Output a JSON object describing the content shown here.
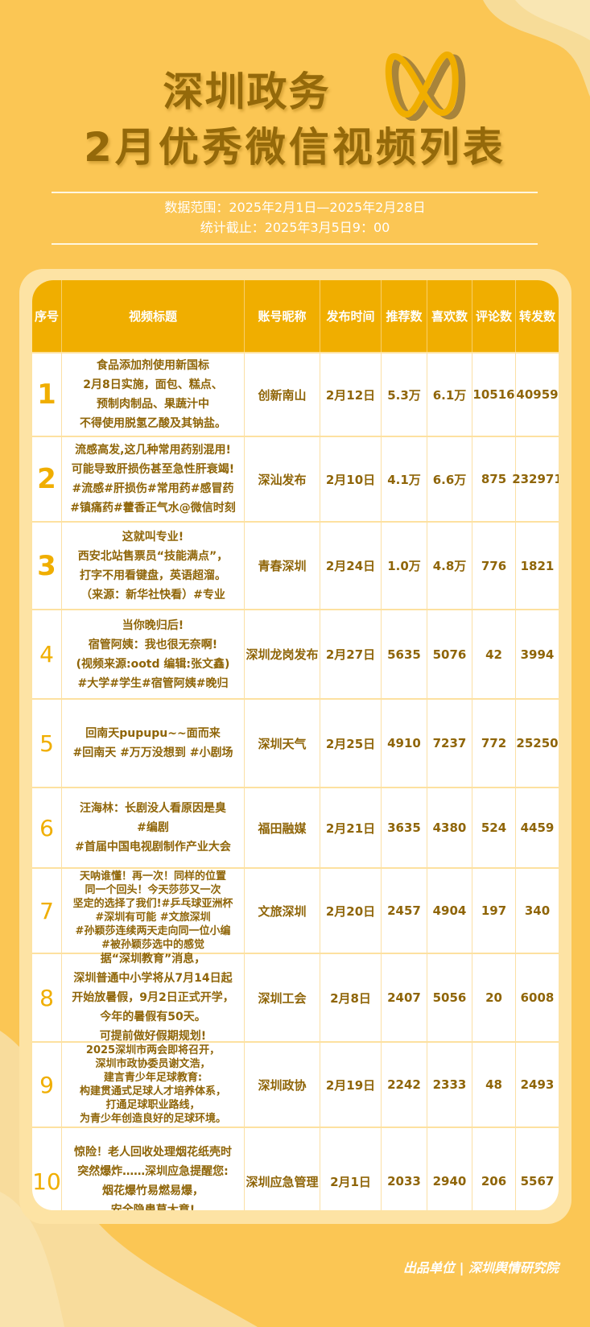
{
  "header": {
    "title_line1": "深圳政务",
    "title_line2": "2月优秀微信视频列表",
    "logo_icon": "wechat-channels-logo",
    "data_range": "数据范围：2025年2月1日—2025年2月28日",
    "cutoff": "统计截止：2025年3月5日9：00"
  },
  "colors": {
    "background": "#fbc654",
    "header": "#f0ae00",
    "text": "#8f6508",
    "accent": "#f0ae00"
  },
  "table": {
    "columns": [
      "序号",
      "视频标题",
      "账号昵称",
      "发布时间",
      "推荐数",
      "喜欢数",
      "评论数",
      "转发数"
    ],
    "rows": [
      {
        "seq": "1",
        "title": [
          "食品添加剂使用新国标",
          "2月8日实施，面包、糕点、",
          "预制肉制品、果蔬汁中",
          "不得使用脱氢乙酸及其钠盐。"
        ],
        "account": "创新南山",
        "date": "2月12日",
        "recommend": "5.3万",
        "likes": "6.1万",
        "comments": "10516",
        "shares": "40959"
      },
      {
        "seq": "2",
        "title": [
          "流感高发,这几种常用药别混用!",
          "可能导致肝损伤甚至急性肝衰竭!",
          "#流感#肝损伤#常用药#感冒药",
          "#镇痛药#藿香正气水@微信时刻"
        ],
        "account": "深汕发布",
        "date": "2月10日",
        "recommend": "4.1万",
        "likes": "6.6万",
        "comments": "875",
        "shares": "232971"
      },
      {
        "seq": "3",
        "title": [
          "这就叫专业!",
          "西安北站售票员“技能满点”，",
          "打字不用看键盘，英语超溜。",
          "（来源：新华社快看）#专业"
        ],
        "account": "青春深圳",
        "date": "2月24日",
        "recommend": "1.0万",
        "likes": "4.8万",
        "comments": "776",
        "shares": "1821"
      },
      {
        "seq": "4",
        "title": [
          "当你晚归后!",
          "宿管阿姨：我也很无奈啊!",
          "(视频来源:ootd 编辑:张文鑫)",
          "#大学#学生#宿管阿姨#晚归"
        ],
        "account": "深圳龙岗发布",
        "date": "2月27日",
        "recommend": "5635",
        "likes": "5076",
        "comments": "42",
        "shares": "3994"
      },
      {
        "seq": "5",
        "title": [
          "回南天pupupu~~面而来",
          "#回南天  #万万没想到 #小剧场"
        ],
        "account": "深圳天气",
        "date": "2月25日",
        "recommend": "4910",
        "likes": "7237",
        "comments": "772",
        "shares": "25250"
      },
      {
        "seq": "6",
        "title": [
          "汪海林：长剧没人看原因是臭",
          "#编剧",
          "#首届中国电视剧制作产业大会"
        ],
        "account": "福田融媒",
        "date": "2月21日",
        "recommend": "3635",
        "likes": "4380",
        "comments": "524",
        "shares": "4459"
      },
      {
        "seq": "7",
        "title": [
          "天呐谁懂！再一次！同样的位置",
          "同一个回头！今天莎莎又一次",
          "坚定的选择了我们!#乒乓球亚洲杯",
          "#深圳有可能 #文旅深圳",
          "#孙颖莎连续两天走向同一位小编",
          "#被孙颖莎选中的感觉"
        ],
        "account": "文旅深圳",
        "date": "2月20日",
        "recommend": "2457",
        "likes": "4904",
        "comments": "197",
        "shares": "340"
      },
      {
        "seq": "8",
        "title": [
          "据“深圳教育”消息，",
          "深圳普通中小学将从7月14日起",
          "开始放暑假，9月2日正式开学，",
          "今年的暑假有50天。",
          "可提前做好假期规划!"
        ],
        "account": "深圳工会",
        "date": "2月8日",
        "recommend": "2407",
        "likes": "5056",
        "comments": "20",
        "shares": "6008"
      },
      {
        "seq": "9",
        "title": [
          "2025深圳市两会即将召开，",
          "深圳市政协委员谢文浩，",
          "建言青少年足球教育:",
          "构建贯通式足球人才培养体系，",
          "打通足球职业路线，",
          "为青少年创造良好的足球环境。"
        ],
        "account": "深圳政协",
        "date": "2月19日",
        "recommend": "2242",
        "likes": "2333",
        "comments": "48",
        "shares": "2493"
      },
      {
        "seq": "10",
        "title": [
          "惊险！老人回收处理烟花纸壳时",
          "突然爆炸……深圳应急提醒您:",
          "烟花爆竹易燃易爆，",
          "安全隐患莫大意!"
        ],
        "account": "深圳应急管理",
        "date": "2月1日",
        "recommend": "2033",
        "likes": "2940",
        "comments": "206",
        "shares": "5567"
      }
    ]
  },
  "footer": {
    "credit": "出品单位 | 深圳舆情研究院"
  }
}
